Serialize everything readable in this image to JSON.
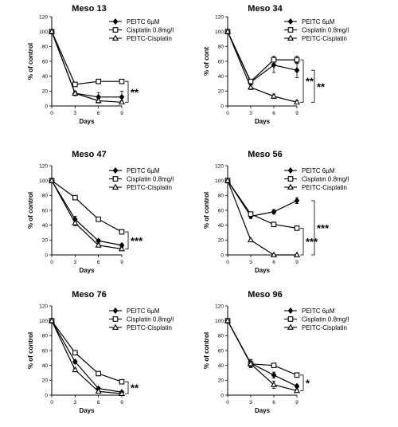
{
  "chart_data": [
    {
      "type": "line",
      "title": "Meso 13",
      "xlabel": "Days",
      "ylabel": "% of control",
      "x": [
        0,
        3,
        6,
        9
      ],
      "xlim": [
        0,
        9
      ],
      "ylim": [
        0,
        120
      ],
      "yticks": [
        0,
        20,
        40,
        60,
        80,
        100,
        120
      ],
      "series": [
        {
          "name": "PEITC 6µM",
          "marker": "diamond",
          "values": [
            100,
            17,
            12,
            12
          ],
          "errors": [
            0,
            3,
            6,
            8
          ]
        },
        {
          "name": "Cisplatin 0.8mg/l",
          "marker": "square",
          "values": [
            100,
            29,
            33,
            33
          ],
          "errors": [
            0,
            2,
            2,
            2
          ]
        },
        {
          "name": "PEITC-Cisplatin",
          "marker": "triangle",
          "values": [
            100,
            17,
            7,
            5
          ],
          "errors": [
            0,
            3,
            3,
            2
          ]
        }
      ],
      "legend_placement": "top-right",
      "grid": false,
      "significance": [
        {
          "label": "**",
          "from": "Cisplatin 0.8mg/l",
          "to": "PEITC-Cisplatin"
        }
      ]
    },
    {
      "type": "line",
      "title": "Meso 34",
      "xlabel": "Days",
      "ylabel": "% of cont",
      "x": [
        0,
        3,
        6,
        9
      ],
      "xlim": [
        0,
        9
      ],
      "ylim": [
        0,
        120
      ],
      "yticks": [
        0,
        20,
        40,
        60,
        80,
        100,
        120
      ],
      "series": [
        {
          "name": "PEITC 6µM",
          "marker": "diamond",
          "values": [
            100,
            32,
            55,
            48
          ],
          "errors": [
            0,
            3,
            10,
            10
          ]
        },
        {
          "name": "Cisplatin 0.8mg/l",
          "marker": "square",
          "values": [
            100,
            33,
            62,
            62
          ],
          "errors": [
            0,
            3,
            5,
            5
          ]
        },
        {
          "name": "PEITC-Cisplatin",
          "marker": "triangle",
          "values": [
            100,
            25,
            13,
            5
          ],
          "errors": [
            0,
            3,
            3,
            2
          ]
        }
      ],
      "legend_placement": "top-right",
      "grid": false,
      "significance": [
        {
          "label": "**",
          "from": "PEITC 6µM",
          "to": "PEITC-Cisplatin"
        },
        {
          "label": "**",
          "from": "Cisplatin 0.8mg/l",
          "to": "PEITC-Cisplatin"
        }
      ]
    },
    {
      "type": "line",
      "title": "Meso 47",
      "xlabel": "Days",
      "ylabel": "% of control",
      "x": [
        0,
        3,
        6,
        9
      ],
      "xlim": [
        0,
        9
      ],
      "ylim": [
        0,
        120
      ],
      "yticks": [
        0,
        20,
        40,
        60,
        80,
        100,
        120
      ],
      "series": [
        {
          "name": "PEITC 6µM",
          "marker": "diamond",
          "values": [
            100,
            48,
            19,
            13
          ],
          "errors": [
            0,
            4,
            2,
            2
          ]
        },
        {
          "name": "Cisplatin 0.8mg/l",
          "marker": "square",
          "values": [
            100,
            77,
            48,
            31
          ],
          "errors": [
            0,
            2,
            2,
            3
          ]
        },
        {
          "name": "PEITC-Cisplatin",
          "marker": "triangle",
          "values": [
            100,
            43,
            13,
            8
          ],
          "errors": [
            0,
            4,
            2,
            2
          ]
        }
      ],
      "legend_placement": "top-right",
      "grid": false,
      "significance": [
        {
          "label": "***",
          "from": "Cisplatin 0.8mg/l",
          "to": "PEITC-Cisplatin"
        }
      ]
    },
    {
      "type": "line",
      "title": "Meso 56",
      "xlabel": "Days",
      "ylabel": "% of control",
      "x": [
        0,
        3,
        6,
        9
      ],
      "xlim": [
        0,
        9
      ],
      "ylim": [
        0,
        120
      ],
      "yticks": [
        0,
        20,
        40,
        60,
        80,
        100,
        120
      ],
      "series": [
        {
          "name": "PEITC 6µM",
          "marker": "diamond",
          "values": [
            100,
            52,
            58,
            73
          ],
          "errors": [
            0,
            3,
            3,
            4
          ]
        },
        {
          "name": "Cisplatin 0.8mg/l",
          "marker": "square",
          "values": [
            100,
            55,
            41,
            36
          ],
          "errors": [
            0,
            3,
            2,
            2
          ]
        },
        {
          "name": "PEITC-Cisplatin",
          "marker": "triangle",
          "values": [
            100,
            20,
            0,
            0
          ],
          "errors": [
            0,
            1,
            1,
            1
          ]
        }
      ],
      "legend_placement": "top-right",
      "grid": false,
      "significance": [
        {
          "label": "***",
          "from": "PEITC 6µM",
          "to": "PEITC-Cisplatin"
        },
        {
          "label": "***",
          "from": "Cisplatin 0.8mg/l",
          "to": "PEITC-Cisplatin"
        }
      ]
    },
    {
      "type": "line",
      "title": "Meso 76",
      "xlabel": "Days",
      "ylabel": "% of control",
      "x": [
        0,
        3,
        6,
        9
      ],
      "xlim": [
        0,
        9
      ],
      "ylim": [
        0,
        120
      ],
      "yticks": [
        0,
        20,
        40,
        60,
        80,
        100,
        120
      ],
      "series": [
        {
          "name": "PEITC 6µM",
          "marker": "diamond",
          "values": [
            100,
            45,
            9,
            4
          ],
          "errors": [
            0,
            2,
            1,
            1
          ]
        },
        {
          "name": "Cisplatin 0.8mg/l",
          "marker": "square",
          "values": [
            100,
            57,
            29,
            18
          ],
          "errors": [
            0,
            2,
            1,
            1
          ]
        },
        {
          "name": "PEITC-Cisplatin",
          "marker": "triangle",
          "values": [
            100,
            34,
            5,
            2
          ],
          "errors": [
            0,
            2,
            1,
            1
          ]
        }
      ],
      "legend_placement": "top-right",
      "grid": false,
      "significance": [
        {
          "label": "**",
          "from": "Cisplatin 0.8mg/l",
          "to": "PEITC-Cisplatin"
        }
      ]
    },
    {
      "type": "line",
      "title": "Meso 96",
      "xlabel": "Days",
      "ylabel": "% of control",
      "x": [
        0,
        3,
        6,
        9
      ],
      "xlim": [
        0,
        9
      ],
      "ylim": [
        0,
        120
      ],
      "yticks": [
        0,
        20,
        40,
        60,
        80,
        100,
        120
      ],
      "series": [
        {
          "name": "PEITC 6µM",
          "marker": "diamond",
          "values": [
            100,
            43,
            27,
            12
          ],
          "errors": [
            0,
            5,
            4,
            2
          ]
        },
        {
          "name": "Cisplatin 0.8mg/l",
          "marker": "square",
          "values": [
            100,
            42,
            40,
            27
          ],
          "errors": [
            0,
            3,
            2,
            2
          ]
        },
        {
          "name": "PEITC-Cisplatin",
          "marker": "triangle",
          "values": [
            100,
            42,
            14,
            6
          ],
          "errors": [
            0,
            5,
            5,
            2
          ]
        }
      ],
      "legend_placement": "top-right",
      "grid": false,
      "significance": [
        {
          "label": "*",
          "from": "Cisplatin 0.8mg/l",
          "to": "PEITC-Cisplatin"
        }
      ]
    }
  ]
}
